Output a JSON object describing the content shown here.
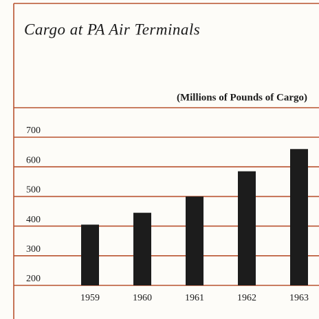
{
  "chart_data": {
    "type": "bar",
    "title": "Cargo at PA Air Terminals",
    "subtitle": "(Millions of Pounds of Cargo)",
    "categories": [
      "1959",
      "1960",
      "1961",
      "1962",
      "1963"
    ],
    "values": [
      405,
      445,
      500,
      585,
      660
    ],
    "color": "#1c1c1c",
    "ylim": [
      200,
      700
    ],
    "yticks": [
      200,
      300,
      400,
      500,
      600,
      700
    ],
    "grid": true
  }
}
